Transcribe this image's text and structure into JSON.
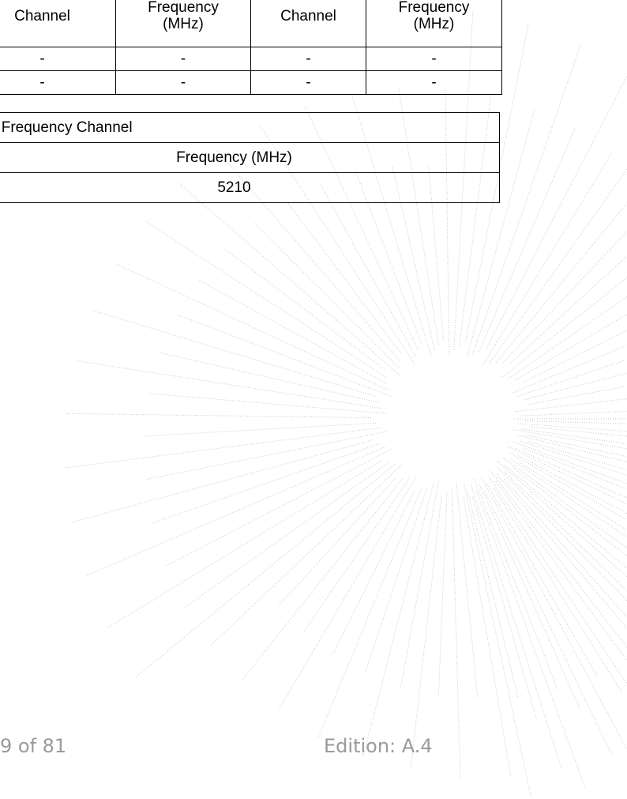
{
  "channel_table": {
    "headers": [
      {
        "line1": "Channel",
        "line2": ""
      },
      {
        "line1": "Frequency",
        "line2": "(MHz)"
      },
      {
        "line1": "Channel",
        "line2": ""
      },
      {
        "line1": "Frequency",
        "line2": "(MHz)"
      }
    ],
    "rows": [
      [
        "-",
        "-",
        "-",
        "-"
      ],
      [
        "-",
        "-",
        "-",
        "-"
      ]
    ]
  },
  "carrier_table": {
    "title": "rier Frequency Channel",
    "header": "Frequency (MHz)",
    "value": "5210"
  },
  "footer": {
    "page": "9 of 81",
    "edition": "Edition: A.4"
  },
  "watermark": {
    "type": "dotted-sunburst",
    "color": "#c8c8c8"
  }
}
